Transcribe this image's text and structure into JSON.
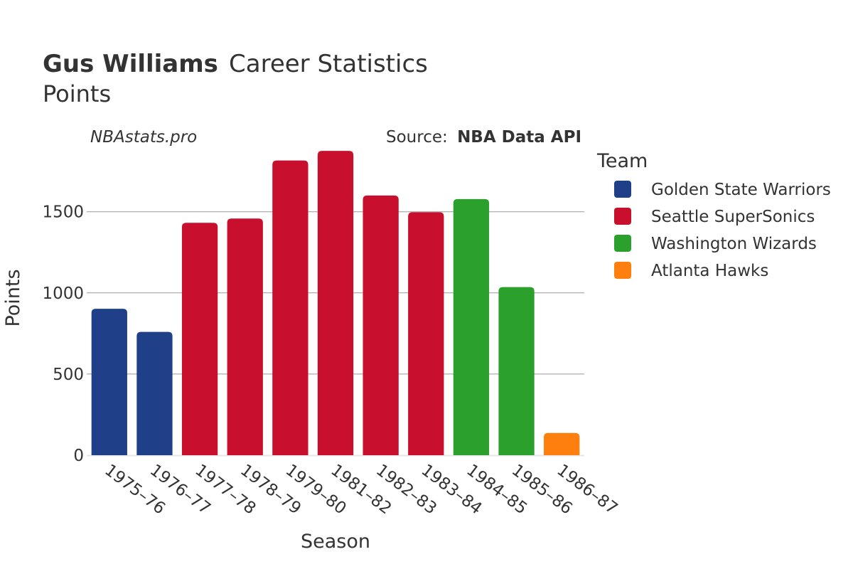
{
  "title_bold": "Gus Williams",
  "title_rest": "Career Statistics",
  "subtitle": "Points",
  "site": "NBAstats.pro",
  "source_prefix": "Source:",
  "source_name": "NBA Data API",
  "chart_data": {
    "type": "bar",
    "xlabel": "Season",
    "ylabel": "Points",
    "ylim": [
      0,
      1950
    ],
    "yticks": [
      0,
      500,
      1000,
      1500
    ],
    "grid": true,
    "legend_title": "Team",
    "legend_position": "right",
    "legend": [
      {
        "team": "Golden State Warriors",
        "color": "#1f4088"
      },
      {
        "team": "Seattle SuperSonics",
        "color": "#c8102e"
      },
      {
        "team": "Washington Wizards",
        "color": "#2ca02c"
      },
      {
        "team": "Atlanta Hawks",
        "color": "#ff7f0e"
      }
    ],
    "categories": [
      "1975–76",
      "1976–77",
      "1977–78",
      "1978–79",
      "1979–80",
      "1981–82",
      "1982–83",
      "1983–84",
      "1984–85",
      "1985–86",
      "1986–87"
    ],
    "values": [
      902,
      760,
      1432,
      1458,
      1816,
      1875,
      1600,
      1497,
      1578,
      1036,
      137
    ],
    "teams": [
      "Golden State Warriors",
      "Golden State Warriors",
      "Seattle SuperSonics",
      "Seattle SuperSonics",
      "Seattle SuperSonics",
      "Seattle SuperSonics",
      "Seattle SuperSonics",
      "Seattle SuperSonics",
      "Washington Wizards",
      "Washington Wizards",
      "Atlanta Hawks"
    ]
  }
}
